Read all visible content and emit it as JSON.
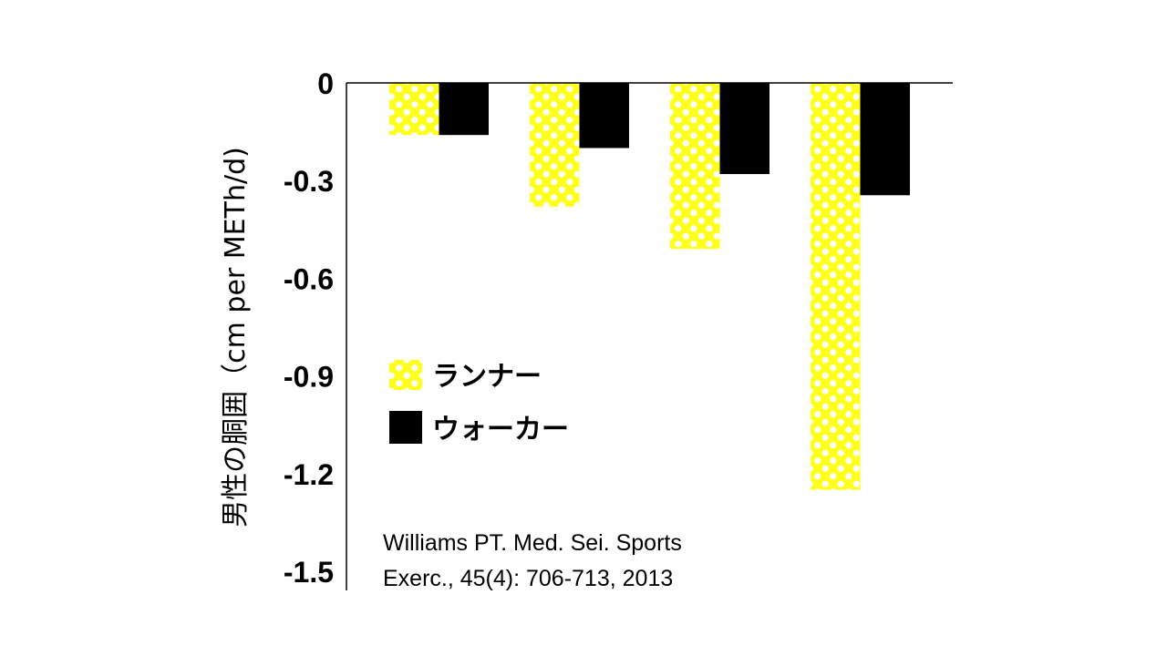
{
  "chart_data": {
    "type": "bar",
    "title": "",
    "xlabel": "",
    "ylabel": "男性の胴囲（cm per METh/d)",
    "ylim": [
      -1.5,
      0
    ],
    "yticks": [
      0,
      -0.3,
      -0.6,
      -0.9,
      -1.2,
      -1.5
    ],
    "ytick_labels": [
      "0",
      "-0.3",
      "-0.6",
      "-0.9",
      "-1.2",
      "-1.5"
    ],
    "categories": [
      "",
      "",
      "",
      ""
    ],
    "series": [
      {
        "name": "ランナー",
        "values": [
          -0.16,
          -0.38,
          -0.51,
          -1.25
        ],
        "color": "#ffff1a",
        "pattern": "white-dots"
      },
      {
        "name": "ウォーカー",
        "values": [
          -0.16,
          -0.2,
          -0.28,
          -0.345
        ],
        "color": "#000000",
        "pattern": "solid"
      }
    ],
    "legend_position": "center-left",
    "grid": false
  },
  "citation": {
    "line1": "Williams PT. Med. Sei. Sports",
    "line2": "Exerc., 45(4): 706-713, 2013"
  }
}
